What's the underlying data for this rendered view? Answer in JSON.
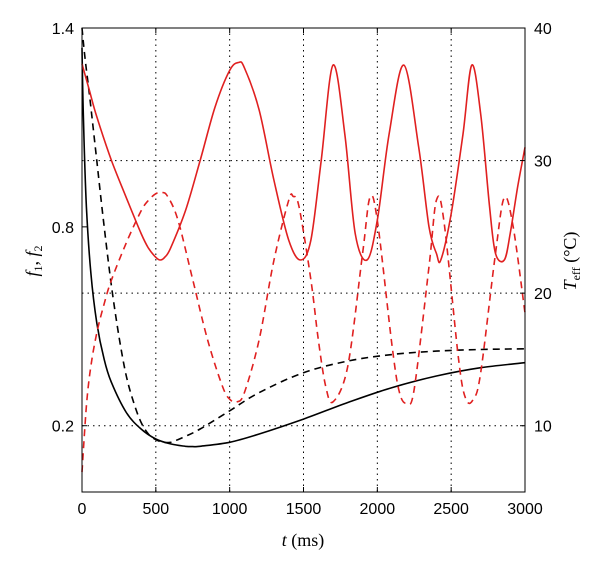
{
  "chart_data": {
    "type": "line",
    "xlabel": {
      "var": "t",
      "unit": " (ms)"
    },
    "ylabel_left": {
      "f1": "f",
      "sub1": "1",
      "sep": ", ",
      "f2": "f",
      "sub2": "2"
    },
    "ylabel_right": {
      "var": "T",
      "sub": "eff",
      "unit": " (°C)"
    },
    "xlim": [
      0,
      3000
    ],
    "ylim_left": [
      0.0,
      1.4
    ],
    "ylim_right": [
      5,
      40
    ],
    "x_ticks": [
      "0",
      "500",
      "1000",
      "1500",
      "2000",
      "2500",
      "3000"
    ],
    "y_left_ticks": [
      "0.2",
      "0.8",
      "1.4"
    ],
    "y_right_ticks": [
      "10",
      "20",
      "30",
      "40"
    ],
    "grid": true,
    "colors": {
      "black": "#000000",
      "red": "#e02020"
    },
    "series": [
      {
        "axis": "left",
        "color": "#000000",
        "style": "solid",
        "x": [
          0,
          10,
          30,
          60,
          100,
          150,
          200,
          300,
          400,
          500,
          600,
          700,
          750,
          800,
          1000,
          1200,
          1500,
          1800,
          2100,
          2400,
          2700,
          3000
        ],
        "y": [
          1.34,
          1.12,
          0.86,
          0.66,
          0.51,
          0.4,
          0.33,
          0.24,
          0.19,
          0.16,
          0.145,
          0.138,
          0.137,
          0.138,
          0.15,
          0.175,
          0.22,
          0.27,
          0.315,
          0.35,
          0.375,
          0.39
        ]
      },
      {
        "axis": "left",
        "color": "#000000",
        "style": "dashed",
        "x": [
          0,
          20,
          50,
          100,
          150,
          200,
          250,
          300,
          350,
          400,
          450,
          500,
          550,
          600,
          650,
          700,
          800,
          1000,
          1200,
          1500,
          1800,
          2100,
          2400,
          2700,
          3000
        ],
        "y": [
          1.4,
          1.31,
          1.2,
          1.0,
          0.8,
          0.62,
          0.47,
          0.35,
          0.27,
          0.21,
          0.175,
          0.158,
          0.15,
          0.15,
          0.158,
          0.168,
          0.19,
          0.245,
          0.3,
          0.36,
          0.395,
          0.415,
          0.425,
          0.43,
          0.432
        ]
      },
      {
        "axis": "right",
        "color": "#e02020",
        "style": "solid",
        "x": [
          0,
          50,
          100,
          200,
          300,
          400,
          450,
          500,
          530,
          560,
          600,
          700,
          800,
          900,
          1000,
          1060,
          1100,
          1200,
          1300,
          1400,
          1480,
          1550,
          1620,
          1700,
          1780,
          1850,
          1930,
          2000,
          2080,
          2180,
          2280,
          2350,
          2400,
          2430,
          2500,
          2580,
          2640,
          2700,
          2760,
          2800,
          2860,
          2900,
          2950,
          3000
        ],
        "y": [
          37.3,
          35.3,
          33.3,
          30.0,
          27.2,
          24.5,
          23.4,
          22.7,
          22.5,
          22.7,
          23.4,
          26.2,
          30.0,
          34.0,
          36.8,
          37.4,
          37.0,
          33.8,
          28.5,
          24.0,
          22.5,
          24.0,
          30.0,
          37.2,
          32.0,
          24.5,
          22.5,
          25.5,
          32.0,
          37.2,
          31.0,
          25.0,
          23.0,
          22.5,
          26.0,
          32.0,
          37.2,
          33.5,
          26.5,
          23.0,
          22.5,
          24.5,
          28.0,
          31.0
        ]
      },
      {
        "axis": "right",
        "color": "#e02020",
        "style": "dashed",
        "x": [
          0,
          30,
          60,
          100,
          150,
          200,
          300,
          400,
          450,
          500,
          540,
          580,
          650,
          750,
          850,
          950,
          1000,
          1050,
          1100,
          1200,
          1300,
          1400,
          1430,
          1470,
          1550,
          1600,
          1650,
          1700,
          1800,
          1900,
          1950,
          2000,
          2100,
          2150,
          2200,
          2250,
          2350,
          2400,
          2450,
          2550,
          2600,
          2650,
          2700,
          2800,
          2860,
          2920,
          3000
        ],
        "y": [
          6.5,
          11.5,
          14.5,
          17.0,
          19.2,
          21.0,
          23.8,
          26.2,
          27.0,
          27.5,
          27.6,
          27.3,
          25.5,
          21.0,
          16.5,
          13.0,
          12.0,
          11.8,
          12.5,
          16.5,
          22.5,
          27.0,
          27.3,
          26.5,
          21.0,
          16.5,
          13.0,
          11.8,
          14.5,
          23.0,
          27.2,
          25.5,
          16.0,
          12.5,
          11.7,
          12.8,
          22.0,
          27.0,
          25.5,
          15.0,
          12.0,
          12.0,
          14.0,
          23.0,
          27.2,
          25.0,
          18.5
        ]
      }
    ]
  }
}
